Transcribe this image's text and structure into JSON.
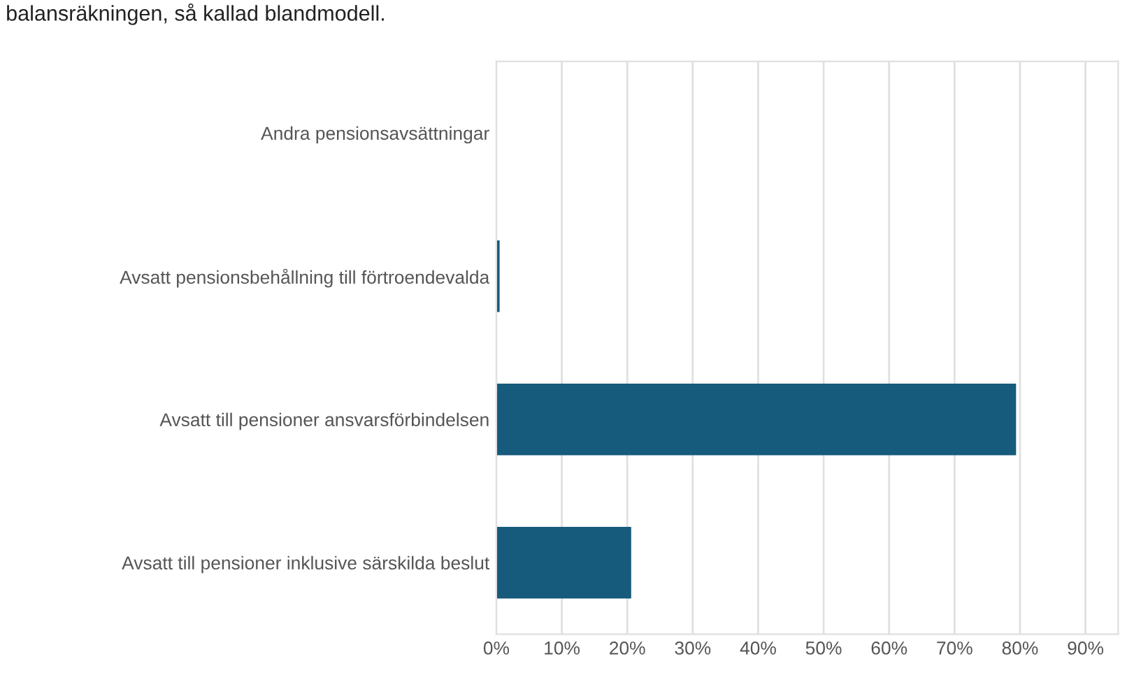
{
  "chart_data": {
    "type": "bar",
    "orientation": "horizontal",
    "annotations": [
      "balansräkningen, så kallad blandmodell."
    ],
    "categories": [
      "Andra pensionsavsättningar",
      "Avsatt pensionsbehållning till förtroendevalda",
      "Avsatt till pensioner ansvarsförbindelsen",
      "Avsatt till pensioner inklusive särskilda beslut"
    ],
    "values": [
      0,
      0.5,
      79.4,
      20.6
    ],
    "color": "#165a7c",
    "xlim": [
      0,
      95
    ],
    "xticks": [
      {
        "value": 0,
        "label": "0%"
      },
      {
        "value": 10,
        "label": "10%"
      },
      {
        "value": 20,
        "label": "20%"
      },
      {
        "value": 30,
        "label": "30%"
      },
      {
        "value": 40,
        "label": "40%"
      },
      {
        "value": 50,
        "label": "50%"
      },
      {
        "value": 60,
        "label": "60%"
      },
      {
        "value": 70,
        "label": "70%"
      },
      {
        "value": 80,
        "label": "80%"
      },
      {
        "value": 90,
        "label": "90%"
      }
    ],
    "grid": "x"
  }
}
